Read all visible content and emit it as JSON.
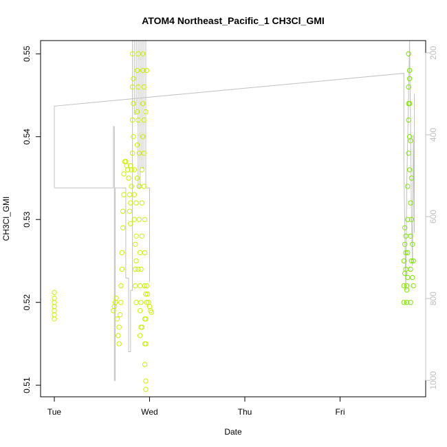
{
  "chart_data": {
    "type": "scatter",
    "title": "ATOM4 Northeast_Pacific_1 CH3Cl_GMI",
    "xlabel": "Date",
    "ylabel": "CH3Cl_GMI",
    "x_ticks": [
      "Tue",
      "Wed",
      "Thu",
      "Fri"
    ],
    "xlim": [
      -0.1,
      3.93
    ],
    "ylim": [
      0.5086,
      0.5516
    ],
    "y_ticks": [
      0.51,
      0.52,
      0.53,
      0.54,
      0.55
    ],
    "y2_ticks": [
      200,
      400,
      600,
      800,
      1000
    ],
    "y2lim": [
      1040,
      170
    ],
    "grid": false,
    "legend": "none",
    "colors": {
      "series_a": "#ccf000",
      "series_b": "#7fe600",
      "secondary_line": "#c0c0c0",
      "axis": "#000000",
      "secondary_axis": "#bfbfbf"
    },
    "series": [
      {
        "color": "#ccf000",
        "points": [
          [
            0.0,
            0.518
          ],
          [
            0.0,
            0.5185
          ],
          [
            0.0,
            0.519
          ],
          [
            0.0,
            0.5195
          ],
          [
            0.0,
            0.52
          ],
          [
            0.0,
            0.5205
          ],
          [
            0.0,
            0.5212
          ],
          [
            0.62,
            0.519
          ],
          [
            0.63,
            0.5195
          ],
          [
            0.64,
            0.52
          ],
          [
            0.65,
            0.5205
          ],
          [
            0.66,
            0.518
          ],
          [
            0.67,
            0.516
          ],
          [
            0.68,
            0.515
          ],
          [
            0.68,
            0.517
          ],
          [
            0.69,
            0.5185
          ],
          [
            0.7,
            0.52
          ],
          [
            0.7,
            0.522
          ],
          [
            0.71,
            0.524
          ],
          [
            0.71,
            0.526
          ],
          [
            0.72,
            0.529
          ],
          [
            0.72,
            0.531
          ],
          [
            0.73,
            0.533
          ],
          [
            0.73,
            0.5355
          ],
          [
            0.74,
            0.537
          ],
          [
            0.75,
            0.537
          ],
          [
            0.76,
            0.5365
          ],
          [
            0.77,
            0.536
          ],
          [
            0.78,
            0.535
          ],
          [
            0.79,
            0.533
          ],
          [
            0.79,
            0.531
          ],
          [
            0.8,
            0.5295
          ],
          [
            0.8,
            0.532
          ],
          [
            0.81,
            0.534
          ],
          [
            0.81,
            0.536
          ],
          [
            0.82,
            0.538
          ],
          [
            0.82,
            0.542
          ],
          [
            0.82,
            0.546
          ],
          [
            0.82,
            0.55
          ],
          [
            0.83,
            0.547
          ],
          [
            0.83,
            0.544
          ],
          [
            0.83,
            0.54
          ],
          [
            0.84,
            0.536
          ],
          [
            0.84,
            0.533
          ],
          [
            0.84,
            0.53
          ],
          [
            0.85,
            0.527
          ],
          [
            0.85,
            0.524
          ],
          [
            0.85,
            0.522
          ],
          [
            0.86,
            0.525
          ],
          [
            0.86,
            0.528
          ],
          [
            0.86,
            0.532
          ],
          [
            0.87,
            0.535
          ],
          [
            0.87,
            0.539
          ],
          [
            0.87,
            0.543
          ],
          [
            0.87,
            0.548
          ],
          [
            0.88,
            0.55
          ],
          [
            0.88,
            0.546
          ],
          [
            0.88,
            0.542
          ],
          [
            0.89,
            0.538
          ],
          [
            0.89,
            0.534
          ],
          [
            0.89,
            0.53
          ],
          [
            0.9,
            0.526
          ],
          [
            0.9,
            0.522
          ],
          [
            0.9,
            0.519
          ],
          [
            0.91,
            0.517
          ],
          [
            0.91,
            0.52
          ],
          [
            0.91,
            0.524
          ],
          [
            0.92,
            0.528
          ],
          [
            0.92,
            0.532
          ],
          [
            0.92,
            0.536
          ],
          [
            0.93,
            0.54
          ],
          [
            0.93,
            0.544
          ],
          [
            0.93,
            0.548
          ],
          [
            0.93,
            0.55
          ],
          [
            0.94,
            0.546
          ],
          [
            0.94,
            0.542
          ],
          [
            0.94,
            0.538
          ],
          [
            0.94,
            0.534
          ],
          [
            0.95,
            0.53
          ],
          [
            0.95,
            0.526
          ],
          [
            0.95,
            0.522
          ],
          [
            0.95,
            0.518
          ],
          [
            0.95,
            0.515
          ],
          [
            0.95,
            0.5125
          ],
          [
            0.96,
            0.515
          ],
          [
            0.96,
            0.518
          ],
          [
            0.96,
            0.521
          ],
          [
            0.96,
            0.5095
          ],
          [
            0.96,
            0.5105
          ],
          [
            0.97,
            0.52
          ],
          [
            0.97,
            0.522
          ],
          [
            0.98,
            0.521
          ],
          [
            0.99,
            0.52
          ],
          [
            1.0,
            0.5195
          ],
          [
            1.01,
            0.519
          ],
          [
            1.02,
            0.5188
          ],
          [
            0.97,
            0.548
          ],
          [
            0.96,
            0.543
          ],
          [
            0.92,
            0.517
          ],
          [
            0.9,
            0.516
          ],
          [
            0.88,
            0.524
          ],
          [
            0.86,
            0.52
          ],
          [
            0.8,
            0.5365
          ]
        ]
      },
      {
        "color": "#7fe600",
        "points": [
          [
            3.67,
            0.52
          ],
          [
            3.67,
            0.522
          ],
          [
            3.67,
            0.525
          ],
          [
            3.68,
            0.527
          ],
          [
            3.68,
            0.529
          ],
          [
            3.69,
            0.528
          ],
          [
            3.69,
            0.526
          ],
          [
            3.69,
            0.524
          ],
          [
            3.7,
            0.522
          ],
          [
            3.7,
            0.52
          ],
          [
            3.71,
            0.523
          ],
          [
            3.71,
            0.526
          ],
          [
            3.71,
            0.53
          ],
          [
            3.71,
            0.534
          ],
          [
            3.72,
            0.538
          ],
          [
            3.72,
            0.542
          ],
          [
            3.72,
            0.546
          ],
          [
            3.72,
            0.55
          ],
          [
            3.73,
            0.548
          ],
          [
            3.73,
            0.544
          ],
          [
            3.73,
            0.54
          ],
          [
            3.73,
            0.536
          ],
          [
            3.74,
            0.532
          ],
          [
            3.74,
            0.528
          ],
          [
            3.74,
            0.524
          ],
          [
            3.74,
            0.52
          ],
          [
            3.75,
            0.525
          ],
          [
            3.75,
            0.53
          ],
          [
            3.76,
            0.527
          ],
          [
            3.76,
            0.523
          ],
          [
            3.77,
            0.522
          ],
          [
            3.77,
            0.525
          ],
          [
            3.72,
            0.544
          ],
          [
            3.73,
            0.547
          ],
          [
            3.74,
            0.5395
          ],
          [
            3.75,
            0.535
          ],
          [
            3.7,
            0.5215
          ],
          [
            3.68,
            0.5235
          ]
        ]
      }
    ],
    "secondary_line": {
      "axis": "right",
      "points": [
        [
          0.0,
          530
        ],
        [
          0.0,
          330
        ],
        [
          3.67,
          250
        ],
        [
          3.67,
          470
        ],
        [
          3.68,
          640
        ],
        [
          3.69,
          780
        ],
        [
          3.7,
          520
        ],
        [
          3.72,
          300
        ],
        [
          3.73,
          160
        ],
        [
          3.74,
          380
        ],
        [
          3.75,
          600
        ],
        [
          3.76,
          720
        ],
        [
          3.77,
          400
        ],
        [
          3.78,
          640
        ],
        [
          3.78,
          300
        ]
      ],
      "extra_segment": [
        [
          0.0,
          530
        ],
        [
          0.62,
          530
        ],
        [
          0.62,
          380
        ],
        [
          0.63,
          380
        ],
        [
          0.63,
          1000
        ],
        [
          0.64,
          1000
        ],
        [
          0.64,
          530
        ],
        [
          0.75,
          530
        ],
        [
          0.75,
          750
        ],
        [
          0.78,
          750
        ],
        [
          0.78,
          930
        ],
        [
          0.8,
          930
        ],
        [
          0.8,
          780
        ],
        [
          0.82,
          780
        ],
        [
          0.82,
          60
        ],
        [
          0.84,
          60
        ],
        [
          0.84,
          350
        ],
        [
          0.86,
          350
        ],
        [
          0.86,
          60
        ],
        [
          0.88,
          60
        ],
        [
          0.88,
          530
        ],
        [
          0.9,
          530
        ],
        [
          0.9,
          60
        ],
        [
          0.92,
          60
        ],
        [
          0.92,
          480
        ],
        [
          0.94,
          480
        ],
        [
          0.94,
          60
        ],
        [
          0.96,
          60
        ],
        [
          0.96,
          530
        ],
        [
          1.0,
          530
        ],
        [
          1.0,
          760
        ]
      ]
    }
  }
}
